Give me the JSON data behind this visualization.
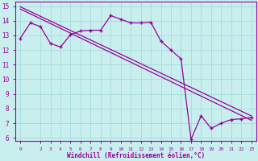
{
  "xlabel": "Windchill (Refroidissement éolien,°C)",
  "background_color": "#c8eeee",
  "line_color": "#990099",
  "grid_color": "#aadddd",
  "xlim": [
    -0.5,
    23.5
  ],
  "ylim": [
    5.8,
    15.3
  ],
  "line1_x": [
    0,
    23
  ],
  "line1_y": [
    14.95,
    7.5
  ],
  "line2_x": [
    0,
    23
  ],
  "line2_y": [
    14.8,
    7.2
  ],
  "zigzag_x": [
    0,
    1,
    2,
    3,
    4,
    5,
    6,
    7,
    8,
    9,
    10,
    11,
    12,
    13,
    14,
    15,
    16,
    17,
    18,
    19,
    20,
    21,
    22,
    23
  ],
  "zigzag_y": [
    12.8,
    13.85,
    13.6,
    12.45,
    12.2,
    13.05,
    13.3,
    13.35,
    13.35,
    14.35,
    14.1,
    13.85,
    13.85,
    13.9,
    12.6,
    12.0,
    11.4,
    5.9,
    7.5,
    6.65,
    7.0,
    7.25,
    7.3,
    7.4
  ],
  "x_ticks": [
    0,
    2,
    3,
    4,
    5,
    6,
    7,
    8,
    9,
    10,
    11,
    12,
    13,
    14,
    15,
    16,
    17,
    18,
    19,
    20,
    21,
    22,
    23
  ],
  "y_ticks": [
    6,
    7,
    8,
    9,
    10,
    11,
    12,
    13,
    14,
    15
  ]
}
